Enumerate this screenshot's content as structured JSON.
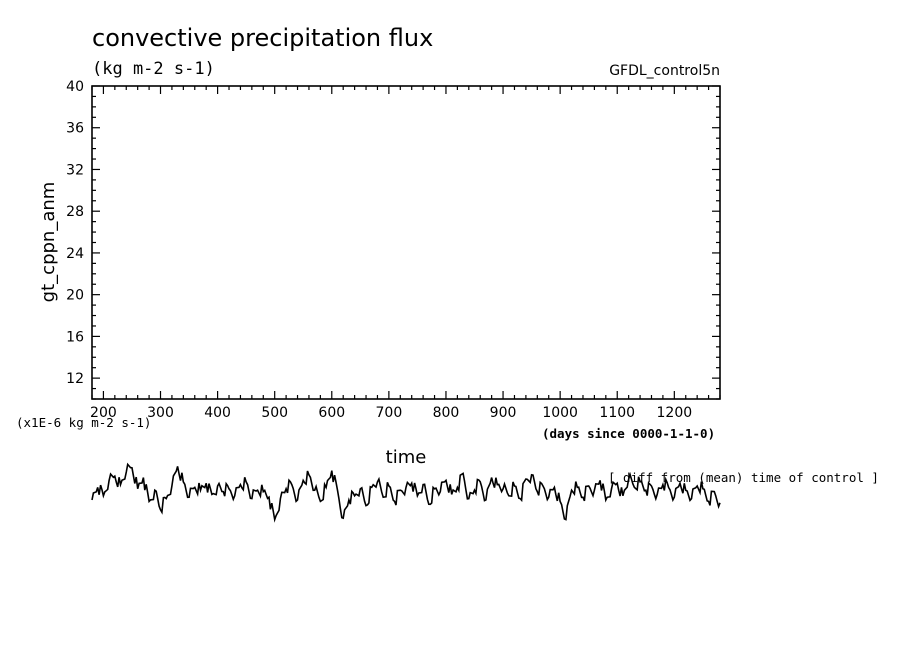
{
  "chart_data": {
    "type": "line",
    "title": "convective precipitation flux",
    "units": "(kg m-2 s-1)",
    "dataset_label": "GFDL_control5n",
    "xlabel": "time",
    "xunits": "(days since 0000-1-1-0)",
    "ylabel": "gt_cppn_anm",
    "yunits_note": "(x1E-6 kg m-2 s-1)",
    "diff_note": "[ diff from (mean) time of control ]",
    "xlim": [
      180,
      1280
    ],
    "ylim": [
      10,
      40
    ],
    "x_ticks": [
      200,
      300,
      400,
      500,
      600,
      700,
      800,
      900,
      1000,
      1100,
      1200
    ],
    "y_ticks": [
      12,
      16,
      20,
      24,
      28,
      32,
      36,
      40
    ],
    "series": [
      {
        "x": [
          180,
          190,
          200,
          210,
          220,
          230,
          240,
          250,
          260,
          270,
          280,
          290,
          300,
          310,
          320,
          330,
          340,
          350,
          360,
          370,
          380,
          390,
          400,
          410,
          420,
          430,
          440,
          450,
          460,
          470,
          480,
          490,
          500,
          510,
          520,
          530,
          540,
          550,
          560,
          570,
          580,
          590,
          600,
          610,
          620,
          630,
          640,
          650,
          660,
          670,
          680,
          690,
          700,
          710,
          720,
          730,
          740,
          750,
          760,
          770,
          780,
          790,
          800,
          810,
          820,
          830,
          840,
          850,
          860,
          870,
          880,
          890,
          900,
          910,
          920,
          930,
          940,
          950,
          960,
          970,
          980,
          990,
          1000,
          1010,
          1020,
          1030,
          1040,
          1050,
          1060,
          1070,
          1080,
          1090,
          1100,
          1110,
          1120,
          1130,
          1140,
          1150,
          1160,
          1170,
          1180,
          1190,
          1200,
          1210,
          1220,
          1230,
          1240,
          1250,
          1260,
          1270,
          1280
        ],
        "values": [
          -0.5,
          0.4,
          -0.2,
          0.9,
          1.2,
          0.6,
          1.5,
          1.8,
          0.3,
          1.1,
          -0.6,
          0.2,
          -1.2,
          -0.4,
          0.5,
          1.9,
          0.8,
          -0.3,
          0.4,
          0.2,
          0.7,
          -0.1,
          0.5,
          0.1,
          0.3,
          -0.2,
          0.6,
          0.8,
          -0.4,
          0.2,
          0.1,
          -0.3,
          -1.9,
          -0.4,
          0.3,
          0.6,
          -0.5,
          0.9,
          1.3,
          0.2,
          -0.6,
          0.4,
          1.6,
          0.2,
          -1.8,
          -0.5,
          -0.2,
          0.3,
          -0.9,
          0.4,
          0.8,
          -0.3,
          0.5,
          -0.6,
          0.2,
          0.4,
          0.7,
          -0.2,
          0.6,
          -0.8,
          0.3,
          0.1,
          0.9,
          -0.1,
          0.4,
          1.4,
          -0.4,
          0.2,
          0.8,
          -0.5,
          1.1,
          0.6,
          0.3,
          -0.2,
          0.5,
          -0.4,
          1.0,
          1.3,
          0.1,
          0.5,
          -0.3,
          0.4,
          -0.6,
          -1.9,
          0.2,
          0.4,
          -0.3,
          0.5,
          0.2,
          0.9,
          -0.5,
          0.3,
          0.7,
          -0.2,
          1.0,
          0.4,
          0.8,
          0.2,
          0.5,
          -0.1,
          0.6,
          0.4,
          -0.3,
          0.7,
          0.2,
          -0.4,
          0.5,
          0.3,
          -0.6,
          0.1,
          -0.7
        ]
      }
    ]
  }
}
